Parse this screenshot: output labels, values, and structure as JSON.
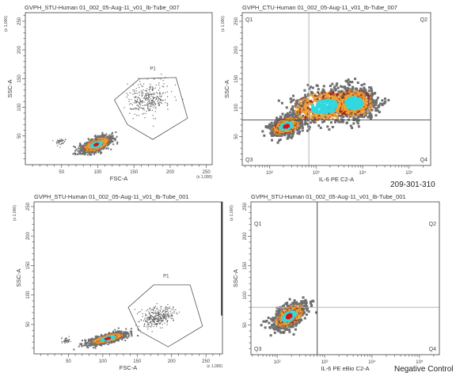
{
  "colors": {
    "low": "#6e6e6e",
    "mid": "#f0a030",
    "mid_dark": "#a02818",
    "high": "#30d8e0",
    "peak": "#e01010",
    "gate": "#555555"
  },
  "chart_data": [
    {
      "type": "scatter",
      "title": "GVPH_STU-Human 01_002_05-Aug-11_v01_Ib-Tube_007",
      "xlabel": "FSC-A",
      "ylabel": "SSC-A",
      "x_unit": "(x 1,000)",
      "y_unit": "(x 1,000)",
      "x_scale": "linear",
      "xlim": [
        0,
        258
      ],
      "ylim": [
        0,
        265
      ],
      "xticks": [
        50,
        100,
        150,
        200,
        250
      ],
      "xtick_labels": [
        "50",
        "100",
        "150",
        "200",
        "250"
      ],
      "yticks": [
        50,
        100,
        150,
        200,
        250
      ],
      "ytick_labels": [
        "50",
        "100",
        "150",
        "200",
        "250"
      ],
      "gates": [
        {
          "name": "P1",
          "vertices": [
            [
              158,
              150
            ],
            [
              208,
              152
            ],
            [
              224,
              81
            ],
            [
              176,
              44
            ],
            [
              141,
              70
            ],
            [
              123,
              113
            ]
          ],
          "label_at": [
            176,
            165
          ]
        }
      ],
      "populations": [
        {
          "center": [
            98,
            35
          ],
          "spread": [
            10,
            7
          ],
          "tilt": 0.6,
          "style": "contour"
        },
        {
          "center": [
            169,
            115
          ],
          "spread": [
            14,
            14
          ],
          "tilt": 0.1,
          "style": "sparse"
        },
        {
          "center": [
            49,
            39
          ],
          "spread": [
            4,
            4
          ],
          "tilt": 0.3,
          "style": "sparse"
        }
      ]
    },
    {
      "type": "scatter",
      "title": "GVPH_CTU-Human 01_002_05-Aug-11_v01_Ib-Tube_007",
      "xlabel": "IL-6 PE C2-A",
      "ylabel": "SSC-A",
      "y_unit": "(x 1,000)",
      "x_scale": "log",
      "xlim": [
        26,
        290000
      ],
      "ylim": [
        0,
        265
      ],
      "xticks": [
        100,
        1000,
        10000,
        100000
      ],
      "xtick_labels": [
        "10²",
        "10³",
        "10⁴",
        "10⁵"
      ],
      "yticks": [
        50,
        100,
        150,
        200,
        250
      ],
      "ytick_labels": [
        "50",
        "100",
        "150",
        "200",
        "250"
      ],
      "quadrant_split": {
        "x": 700,
        "y": 79
      },
      "quadrants": [
        "Q1",
        "Q2",
        "Q3",
        "Q4"
      ],
      "populations": [
        {
          "center": [
            230,
            68
          ],
          "spread": [
            0.17,
            8
          ],
          "tilt": 0.4,
          "style": "density",
          "peak": true
        },
        {
          "center": [
            1500,
            102
          ],
          "spread": [
            0.38,
            15
          ],
          "tilt": 0.2,
          "style": "density"
        },
        {
          "center": [
            6500,
            108
          ],
          "spread": [
            0.24,
            13
          ],
          "tilt": 0.0,
          "style": "density"
        }
      ],
      "annotation": "209-301-310"
    },
    {
      "type": "scatter",
      "title": "GVPH_STU-Human 01_002_05-Aug-11_v01_Ib-Tube_001",
      "xlabel": "FSC-A",
      "ylabel": "SSC-A",
      "x_unit": "(x 1,000)",
      "y_unit": "(x 1,000)",
      "x_scale": "linear",
      "xlim": [
        0,
        274
      ],
      "ylim": [
        0,
        258
      ],
      "xticks": [
        50,
        100,
        150,
        200,
        250
      ],
      "xtick_labels": [
        "50",
        "100",
        "150",
        "200",
        "250"
      ],
      "yticks": [
        50,
        100,
        150,
        200,
        250
      ],
      "ytick_labels": [
        "50",
        "100",
        "150",
        "200",
        "250"
      ],
      "gates": [
        {
          "name": "P1",
          "vertices": [
            [
              174,
              117
            ],
            [
              227,
              117
            ],
            [
              245,
              47
            ],
            [
              195,
              12
            ],
            [
              153,
              39
            ],
            [
              137,
              79
            ]
          ],
          "label_at": [
            192,
            130
          ]
        }
      ],
      "populations": [
        {
          "center": [
            107,
            26
          ],
          "spread": [
            13,
            5
          ],
          "tilt": 0.75,
          "style": "contour"
        },
        {
          "center": [
            180,
            63
          ],
          "spread": [
            12,
            9
          ],
          "tilt": 0.3,
          "style": "sparse"
        },
        {
          "center": [
            47,
            23
          ],
          "spread": [
            3,
            3
          ],
          "tilt": 0.2,
          "style": "sparse"
        }
      ],
      "saturation_edge": {
        "x": 274,
        "y_range": [
          65,
          258
        ]
      }
    },
    {
      "type": "scatter",
      "title": "GVPH_STU-Human 01_002_05-Aug-11_v01_Ib-Tube_001",
      "xlabel": "IL-6 PE eBio C2-A",
      "ylabel": "SSC-A",
      "y_unit": "(x 1,000)",
      "x_scale": "log",
      "xlim": [
        28,
        263000
      ],
      "ylim": [
        0,
        258
      ],
      "xticks": [
        100,
        1000,
        10000,
        100000
      ],
      "xtick_labels": [
        "10²",
        "10³",
        "10⁴",
        "10⁵"
      ],
      "yticks": [
        50,
        100,
        150,
        200,
        250
      ],
      "ytick_labels": [
        "50",
        "100",
        "150",
        "200",
        "250"
      ],
      "quadrant_split": {
        "x": 700,
        "y": 80
      },
      "quadrants": [
        "Q1",
        "Q2",
        "Q3",
        "Q4"
      ],
      "populations": [
        {
          "center": [
            180,
            65
          ],
          "spread": [
            0.17,
            11
          ],
          "tilt": 0.55,
          "style": "density",
          "peak": true
        }
      ],
      "annotation": "Negative Control"
    }
  ]
}
